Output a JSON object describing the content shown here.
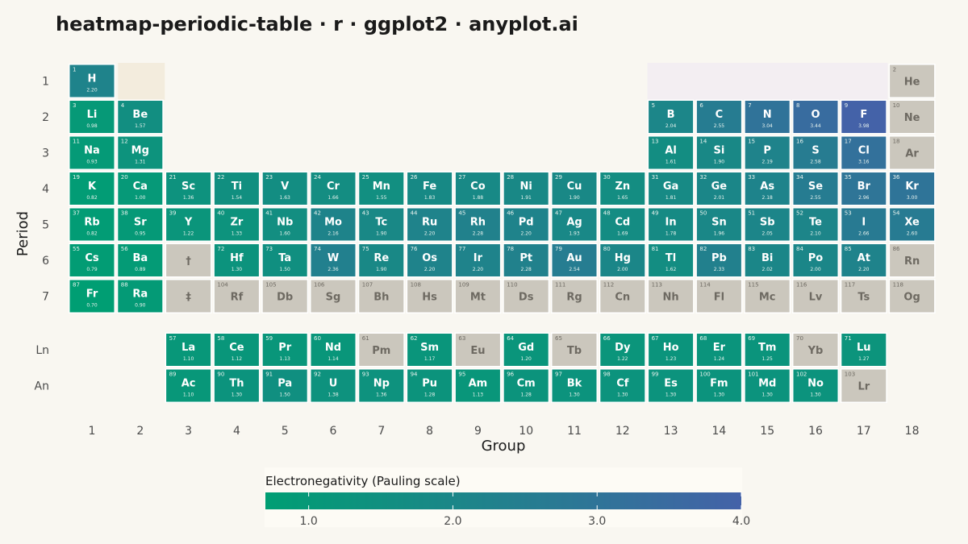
{
  "title": "heatmap-periodic-table · r · ggplot2 · anyplot.ai",
  "chart_data": {
    "type": "heatmap",
    "title": "heatmap-periodic-table · r · ggplot2 · anyplot.ai",
    "xlabel": "Group",
    "ylabel": "Period",
    "x_ticks": [
      "1",
      "2",
      "3",
      "4",
      "5",
      "6",
      "7",
      "8",
      "9",
      "10",
      "11",
      "12",
      "13",
      "14",
      "15",
      "16",
      "17",
      "18"
    ],
    "y_ticks": [
      "1",
      "2",
      "3",
      "4",
      "5",
      "6",
      "7",
      "Ln",
      "An"
    ],
    "legend": {
      "title": "Electronegativity (Pauling scale)",
      "ticks": [
        "1.0",
        "2.0",
        "3.0",
        "4.0"
      ],
      "min": 0.7,
      "max": 4.0,
      "position": "bottom",
      "color_low": "#009e73",
      "color_high": "#4462a8"
    },
    "colors": {
      "missing": "#cbc7bd",
      "missing_text": "#6e6a62",
      "value_text": "#ffffff",
      "block_s": "#f3ecdd",
      "block_p": "#f3eef2"
    },
    "placeholders": [
      {
        "symbol": "†",
        "group": 3,
        "period": "6"
      },
      {
        "symbol": "‡",
        "group": 3,
        "period": "7"
      }
    ],
    "elements": [
      {
        "n": 1,
        "s": "H",
        "g": 1,
        "p": "1",
        "en": 2.2
      },
      {
        "n": 2,
        "s": "He",
        "g": 18,
        "p": "1",
        "en": null
      },
      {
        "n": 3,
        "s": "Li",
        "g": 1,
        "p": "2",
        "en": 0.98
      },
      {
        "n": 4,
        "s": "Be",
        "g": 2,
        "p": "2",
        "en": 1.57
      },
      {
        "n": 5,
        "s": "B",
        "g": 13,
        "p": "2",
        "en": 2.04
      },
      {
        "n": 6,
        "s": "C",
        "g": 14,
        "p": "2",
        "en": 2.55
      },
      {
        "n": 7,
        "s": "N",
        "g": 15,
        "p": "2",
        "en": 3.04
      },
      {
        "n": 8,
        "s": "O",
        "g": 16,
        "p": "2",
        "en": 3.44
      },
      {
        "n": 9,
        "s": "F",
        "g": 17,
        "p": "2",
        "en": 3.98
      },
      {
        "n": 10,
        "s": "Ne",
        "g": 18,
        "p": "2",
        "en": null
      },
      {
        "n": 11,
        "s": "Na",
        "g": 1,
        "p": "3",
        "en": 0.93
      },
      {
        "n": 12,
        "s": "Mg",
        "g": 2,
        "p": "3",
        "en": 1.31
      },
      {
        "n": 13,
        "s": "Al",
        "g": 13,
        "p": "3",
        "en": 1.61
      },
      {
        "n": 14,
        "s": "Si",
        "g": 14,
        "p": "3",
        "en": 1.9
      },
      {
        "n": 15,
        "s": "P",
        "g": 15,
        "p": "3",
        "en": 2.19
      },
      {
        "n": 16,
        "s": "S",
        "g": 16,
        "p": "3",
        "en": 2.58
      },
      {
        "n": 17,
        "s": "Cl",
        "g": 17,
        "p": "3",
        "en": 3.16
      },
      {
        "n": 18,
        "s": "Ar",
        "g": 18,
        "p": "3",
        "en": null
      },
      {
        "n": 19,
        "s": "K",
        "g": 1,
        "p": "4",
        "en": 0.82
      },
      {
        "n": 20,
        "s": "Ca",
        "g": 2,
        "p": "4",
        "en": 1.0
      },
      {
        "n": 21,
        "s": "Sc",
        "g": 3,
        "p": "4",
        "en": 1.36
      },
      {
        "n": 22,
        "s": "Ti",
        "g": 4,
        "p": "4",
        "en": 1.54
      },
      {
        "n": 23,
        "s": "V",
        "g": 5,
        "p": "4",
        "en": 1.63
      },
      {
        "n": 24,
        "s": "Cr",
        "g": 6,
        "p": "4",
        "en": 1.66
      },
      {
        "n": 25,
        "s": "Mn",
        "g": 7,
        "p": "4",
        "en": 1.55
      },
      {
        "n": 26,
        "s": "Fe",
        "g": 8,
        "p": "4",
        "en": 1.83
      },
      {
        "n": 27,
        "s": "Co",
        "g": 9,
        "p": "4",
        "en": 1.88
      },
      {
        "n": 28,
        "s": "Ni",
        "g": 10,
        "p": "4",
        "en": 1.91
      },
      {
        "n": 29,
        "s": "Cu",
        "g": 11,
        "p": "4",
        "en": 1.9
      },
      {
        "n": 30,
        "s": "Zn",
        "g": 12,
        "p": "4",
        "en": 1.65
      },
      {
        "n": 31,
        "s": "Ga",
        "g": 13,
        "p": "4",
        "en": 1.81
      },
      {
        "n": 32,
        "s": "Ge",
        "g": 14,
        "p": "4",
        "en": 2.01
      },
      {
        "n": 33,
        "s": "As",
        "g": 15,
        "p": "4",
        "en": 2.18
      },
      {
        "n": 34,
        "s": "Se",
        "g": 16,
        "p": "4",
        "en": 2.55
      },
      {
        "n": 35,
        "s": "Br",
        "g": 17,
        "p": "4",
        "en": 2.96
      },
      {
        "n": 36,
        "s": "Kr",
        "g": 18,
        "p": "4",
        "en": 3.0
      },
      {
        "n": 37,
        "s": "Rb",
        "g": 1,
        "p": "5",
        "en": 0.82
      },
      {
        "n": 38,
        "s": "Sr",
        "g": 2,
        "p": "5",
        "en": 0.95
      },
      {
        "n": 39,
        "s": "Y",
        "g": 3,
        "p": "5",
        "en": 1.22
      },
      {
        "n": 40,
        "s": "Zr",
        "g": 4,
        "p": "5",
        "en": 1.33
      },
      {
        "n": 41,
        "s": "Nb",
        "g": 5,
        "p": "5",
        "en": 1.6
      },
      {
        "n": 42,
        "s": "Mo",
        "g": 6,
        "p": "5",
        "en": 2.16
      },
      {
        "n": 43,
        "s": "Tc",
        "g": 7,
        "p": "5",
        "en": 1.9
      },
      {
        "n": 44,
        "s": "Ru",
        "g": 8,
        "p": "5",
        "en": 2.2
      },
      {
        "n": 45,
        "s": "Rh",
        "g": 9,
        "p": "5",
        "en": 2.28
      },
      {
        "n": 46,
        "s": "Pd",
        "g": 10,
        "p": "5",
        "en": 2.2
      },
      {
        "n": 47,
        "s": "Ag",
        "g": 11,
        "p": "5",
        "en": 1.93
      },
      {
        "n": 48,
        "s": "Cd",
        "g": 12,
        "p": "5",
        "en": 1.69
      },
      {
        "n": 49,
        "s": "In",
        "g": 13,
        "p": "5",
        "en": 1.78
      },
      {
        "n": 50,
        "s": "Sn",
        "g": 14,
        "p": "5",
        "en": 1.96
      },
      {
        "n": 51,
        "s": "Sb",
        "g": 15,
        "p": "5",
        "en": 2.05
      },
      {
        "n": 52,
        "s": "Te",
        "g": 16,
        "p": "5",
        "en": 2.1
      },
      {
        "n": 53,
        "s": "I",
        "g": 17,
        "p": "5",
        "en": 2.66
      },
      {
        "n": 54,
        "s": "Xe",
        "g": 18,
        "p": "5",
        "en": 2.6
      },
      {
        "n": 55,
        "s": "Cs",
        "g": 1,
        "p": "6",
        "en": 0.79
      },
      {
        "n": 56,
        "s": "Ba",
        "g": 2,
        "p": "6",
        "en": 0.89
      },
      {
        "n": 72,
        "s": "Hf",
        "g": 4,
        "p": "6",
        "en": 1.3
      },
      {
        "n": 73,
        "s": "Ta",
        "g": 5,
        "p": "6",
        "en": 1.5
      },
      {
        "n": 74,
        "s": "W",
        "g": 6,
        "p": "6",
        "en": 2.36
      },
      {
        "n": 75,
        "s": "Re",
        "g": 7,
        "p": "6",
        "en": 1.9
      },
      {
        "n": 76,
        "s": "Os",
        "g": 8,
        "p": "6",
        "en": 2.2
      },
      {
        "n": 77,
        "s": "Ir",
        "g": 9,
        "p": "6",
        "en": 2.2
      },
      {
        "n": 78,
        "s": "Pt",
        "g": 10,
        "p": "6",
        "en": 2.28
      },
      {
        "n": 79,
        "s": "Au",
        "g": 11,
        "p": "6",
        "en": 2.54
      },
      {
        "n": 80,
        "s": "Hg",
        "g": 12,
        "p": "6",
        "en": 2.0
      },
      {
        "n": 81,
        "s": "Tl",
        "g": 13,
        "p": "6",
        "en": 1.62
      },
      {
        "n": 82,
        "s": "Pb",
        "g": 14,
        "p": "6",
        "en": 2.33
      },
      {
        "n": 83,
        "s": "Bi",
        "g": 15,
        "p": "6",
        "en": 2.02
      },
      {
        "n": 84,
        "s": "Po",
        "g": 16,
        "p": "6",
        "en": 2.0
      },
      {
        "n": 85,
        "s": "At",
        "g": 17,
        "p": "6",
        "en": 2.2
      },
      {
        "n": 86,
        "s": "Rn",
        "g": 18,
        "p": "6",
        "en": null
      },
      {
        "n": 87,
        "s": "Fr",
        "g": 1,
        "p": "7",
        "en": 0.7
      },
      {
        "n": 88,
        "s": "Ra",
        "g": 2,
        "p": "7",
        "en": 0.9
      },
      {
        "n": 104,
        "s": "Rf",
        "g": 4,
        "p": "7",
        "en": null
      },
      {
        "n": 105,
        "s": "Db",
        "g": 5,
        "p": "7",
        "en": null
      },
      {
        "n": 106,
        "s": "Sg",
        "g": 6,
        "p": "7",
        "en": null
      },
      {
        "n": 107,
        "s": "Bh",
        "g": 7,
        "p": "7",
        "en": null
      },
      {
        "n": 108,
        "s": "Hs",
        "g": 8,
        "p": "7",
        "en": null
      },
      {
        "n": 109,
        "s": "Mt",
        "g": 9,
        "p": "7",
        "en": null
      },
      {
        "n": 110,
        "s": "Ds",
        "g": 10,
        "p": "7",
        "en": null
      },
      {
        "n": 111,
        "s": "Rg",
        "g": 11,
        "p": "7",
        "en": null
      },
      {
        "n": 112,
        "s": "Cn",
        "g": 12,
        "p": "7",
        "en": null
      },
      {
        "n": 113,
        "s": "Nh",
        "g": 13,
        "p": "7",
        "en": null
      },
      {
        "n": 114,
        "s": "Fl",
        "g": 14,
        "p": "7",
        "en": null
      },
      {
        "n": 115,
        "s": "Mc",
        "g": 15,
        "p": "7",
        "en": null
      },
      {
        "n": 116,
        "s": "Lv",
        "g": 16,
        "p": "7",
        "en": null
      },
      {
        "n": 117,
        "s": "Ts",
        "g": 17,
        "p": "7",
        "en": null
      },
      {
        "n": 118,
        "s": "Og",
        "g": 18,
        "p": "7",
        "en": null
      },
      {
        "n": 57,
        "s": "La",
        "g": 3,
        "p": "Ln",
        "en": 1.1
      },
      {
        "n": 58,
        "s": "Ce",
        "g": 4,
        "p": "Ln",
        "en": 1.12
      },
      {
        "n": 59,
        "s": "Pr",
        "g": 5,
        "p": "Ln",
        "en": 1.13
      },
      {
        "n": 60,
        "s": "Nd",
        "g": 6,
        "p": "Ln",
        "en": 1.14
      },
      {
        "n": 61,
        "s": "Pm",
        "g": 7,
        "p": "Ln",
        "en": null
      },
      {
        "n": 62,
        "s": "Sm",
        "g": 8,
        "p": "Ln",
        "en": 1.17
      },
      {
        "n": 63,
        "s": "Eu",
        "g": 9,
        "p": "Ln",
        "en": null
      },
      {
        "n": 64,
        "s": "Gd",
        "g": 10,
        "p": "Ln",
        "en": 1.2
      },
      {
        "n": 65,
        "s": "Tb",
        "g": 11,
        "p": "Ln",
        "en": null
      },
      {
        "n": 66,
        "s": "Dy",
        "g": 12,
        "p": "Ln",
        "en": 1.22
      },
      {
        "n": 67,
        "s": "Ho",
        "g": 13,
        "p": "Ln",
        "en": 1.23
      },
      {
        "n": 68,
        "s": "Er",
        "g": 14,
        "p": "Ln",
        "en": 1.24
      },
      {
        "n": 69,
        "s": "Tm",
        "g": 15,
        "p": "Ln",
        "en": 1.25
      },
      {
        "n": 70,
        "s": "Yb",
        "g": 16,
        "p": "Ln",
        "en": null
      },
      {
        "n": 71,
        "s": "Lu",
        "g": 17,
        "p": "Ln",
        "en": 1.27
      },
      {
        "n": 89,
        "s": "Ac",
        "g": 3,
        "p": "An",
        "en": 1.1
      },
      {
        "n": 90,
        "s": "Th",
        "g": 4,
        "p": "An",
        "en": 1.3
      },
      {
        "n": 91,
        "s": "Pa",
        "g": 5,
        "p": "An",
        "en": 1.5
      },
      {
        "n": 92,
        "s": "U",
        "g": 6,
        "p": "An",
        "en": 1.38
      },
      {
        "n": 93,
        "s": "Np",
        "g": 7,
        "p": "An",
        "en": 1.36
      },
      {
        "n": 94,
        "s": "Pu",
        "g": 8,
        "p": "An",
        "en": 1.28
      },
      {
        "n": 95,
        "s": "Am",
        "g": 9,
        "p": "An",
        "en": 1.13
      },
      {
        "n": 96,
        "s": "Cm",
        "g": 10,
        "p": "An",
        "en": 1.28
      },
      {
        "n": 97,
        "s": "Bk",
        "g": 11,
        "p": "An",
        "en": 1.3
      },
      {
        "n": 98,
        "s": "Cf",
        "g": 12,
        "p": "An",
        "en": 1.3
      },
      {
        "n": 99,
        "s": "Es",
        "g": 13,
        "p": "An",
        "en": 1.3
      },
      {
        "n": 100,
        "s": "Fm",
        "g": 14,
        "p": "An",
        "en": 1.3
      },
      {
        "n": 101,
        "s": "Md",
        "g": 15,
        "p": "An",
        "en": 1.3
      },
      {
        "n": 102,
        "s": "No",
        "g": 16,
        "p": "An",
        "en": 1.3
      },
      {
        "n": 103,
        "s": "Lr",
        "g": 17,
        "p": "An",
        "en": null
      }
    ]
  }
}
